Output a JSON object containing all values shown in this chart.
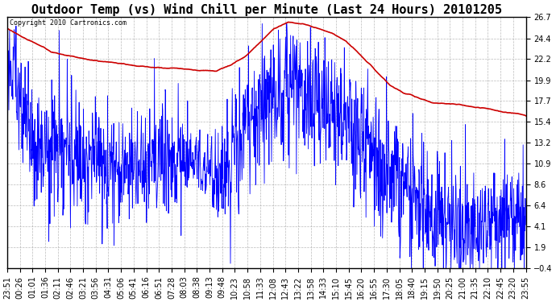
{
  "title": "Outdoor Temp (vs) Wind Chill per Minute (Last 24 Hours) 20101205",
  "copyright_text": "Copyright 2010 Cartronics.com",
  "y_ticks": [
    26.7,
    24.4,
    22.2,
    19.9,
    17.7,
    15.4,
    13.2,
    10.9,
    8.6,
    6.4,
    4.1,
    1.9,
    -0.4
  ],
  "ylim": [
    -0.4,
    26.7
  ],
  "x_labels": [
    "23:51",
    "00:26",
    "01:01",
    "01:36",
    "02:11",
    "02:46",
    "03:21",
    "03:56",
    "04:31",
    "05:06",
    "05:41",
    "06:16",
    "06:51",
    "07:28",
    "08:03",
    "08:38",
    "09:13",
    "09:48",
    "10:23",
    "10:58",
    "11:33",
    "12:08",
    "12:43",
    "13:22",
    "13:58",
    "14:33",
    "15:10",
    "15:45",
    "16:20",
    "16:55",
    "17:30",
    "18:05",
    "18:40",
    "19:15",
    "19:50",
    "20:25",
    "21:00",
    "21:35",
    "22:10",
    "22:45",
    "23:20",
    "23:55"
  ],
  "background_color": "#ffffff",
  "plot_bg_color": "#ffffff",
  "grid_color": "#aaaaaa",
  "line_blue_color": "#0000ff",
  "line_red_color": "#cc0000",
  "title_fontsize": 11,
  "tick_fontsize": 7,
  "outdoor_temp_keypoints": [
    [
      0,
      25.5
    ],
    [
      60,
      24.2
    ],
    [
      120,
      23.0
    ],
    [
      180,
      22.5
    ],
    [
      240,
      22.0
    ],
    [
      300,
      21.8
    ],
    [
      360,
      21.5
    ],
    [
      420,
      21.3
    ],
    [
      480,
      21.2
    ],
    [
      540,
      21.0
    ],
    [
      580,
      20.8
    ],
    [
      620,
      21.5
    ],
    [
      660,
      22.5
    ],
    [
      700,
      24.0
    ],
    [
      740,
      25.5
    ],
    [
      780,
      26.2
    ],
    [
      820,
      26.0
    ],
    [
      860,
      25.5
    ],
    [
      900,
      25.0
    ],
    [
      940,
      24.0
    ],
    [
      980,
      22.5
    ],
    [
      1020,
      21.0
    ],
    [
      1060,
      19.5
    ],
    [
      1100,
      18.5
    ],
    [
      1140,
      18.0
    ],
    [
      1180,
      17.5
    ],
    [
      1220,
      17.3
    ],
    [
      1260,
      17.2
    ],
    [
      1300,
      17.0
    ],
    [
      1340,
      16.8
    ],
    [
      1380,
      16.5
    ],
    [
      1420,
      16.2
    ],
    [
      1439,
      16.0
    ]
  ],
  "wind_chill_envelope_keypoints": [
    [
      0,
      21.0
    ],
    [
      30,
      18.0
    ],
    [
      60,
      15.0
    ],
    [
      90,
      13.0
    ],
    [
      120,
      12.5
    ],
    [
      180,
      12.0
    ],
    [
      240,
      11.5
    ],
    [
      300,
      11.0
    ],
    [
      360,
      11.0
    ],
    [
      420,
      11.5
    ],
    [
      480,
      12.0
    ],
    [
      540,
      10.5
    ],
    [
      580,
      10.0
    ],
    [
      620,
      11.0
    ],
    [
      660,
      14.5
    ],
    [
      700,
      16.5
    ],
    [
      740,
      18.5
    ],
    [
      780,
      19.0
    ],
    [
      820,
      18.5
    ],
    [
      860,
      17.5
    ],
    [
      900,
      16.5
    ],
    [
      940,
      15.0
    ],
    [
      980,
      13.0
    ],
    [
      1020,
      11.0
    ],
    [
      1060,
      9.0
    ],
    [
      1100,
      7.5
    ],
    [
      1140,
      6.5
    ],
    [
      1180,
      5.5
    ],
    [
      1220,
      5.0
    ],
    [
      1260,
      4.5
    ],
    [
      1300,
      4.0
    ],
    [
      1340,
      4.5
    ],
    [
      1380,
      5.0
    ],
    [
      1420,
      5.5
    ],
    [
      1439,
      5.5
    ]
  ],
  "wind_chill_noise_std_keypoints": [
    [
      0,
      3.0
    ],
    [
      120,
      3.5
    ],
    [
      480,
      3.0
    ],
    [
      540,
      1.5
    ],
    [
      620,
      3.5
    ],
    [
      900,
      3.5
    ],
    [
      1100,
      4.0
    ],
    [
      1200,
      3.5
    ],
    [
      1300,
      3.0
    ],
    [
      1439,
      3.5
    ]
  ]
}
